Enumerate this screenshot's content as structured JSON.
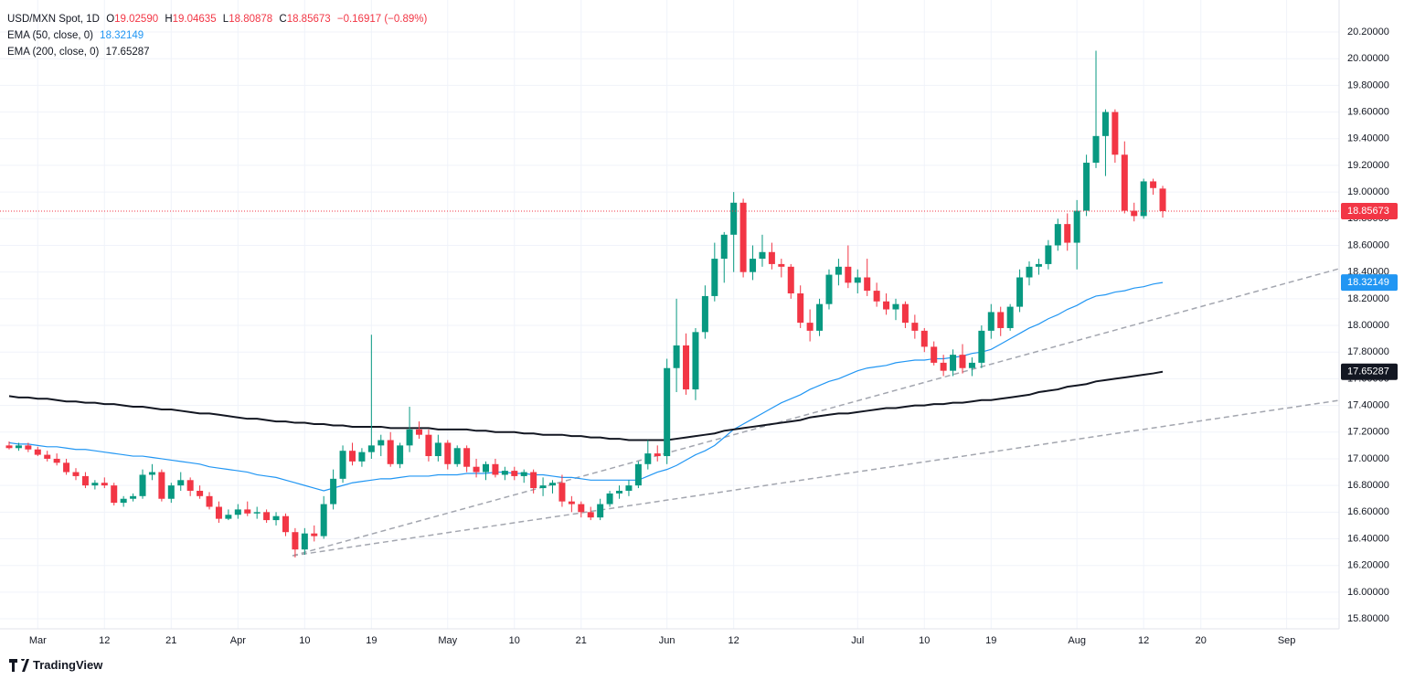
{
  "chart_data": {
    "type": "candlestick",
    "title": "USD/MXN Spot, 1D",
    "header": {
      "ohlc": [
        {
          "key": "O",
          "text": "19.02590"
        },
        {
          "key": "H",
          "text": "19.04635"
        },
        {
          "key": "L",
          "text": "18.80878"
        },
        {
          "key": "C",
          "text": "18.85673"
        }
      ],
      "change": "−0.16917 (−0.89%)"
    },
    "branding": "TradingView",
    "categories": [
      null,
      null,
      null,
      "Mar",
      null,
      null,
      null,
      null,
      null,
      null,
      "12",
      null,
      null,
      null,
      null,
      null,
      null,
      "21",
      null,
      null,
      null,
      null,
      null,
      null,
      "Apr",
      null,
      null,
      null,
      null,
      null,
      null,
      "10",
      null,
      null,
      null,
      null,
      null,
      null,
      "19",
      null,
      null,
      null,
      null,
      null,
      null,
      null,
      "May",
      null,
      null,
      null,
      null,
      null,
      null,
      "10",
      null,
      null,
      null,
      null,
      null,
      null,
      "21",
      null,
      null,
      null,
      null,
      null,
      null,
      null,
      null,
      "Jun",
      null,
      null,
      null,
      null,
      null,
      null,
      "12",
      null,
      null,
      null,
      null,
      null,
      null,
      null,
      null,
      null,
      null,
      null,
      null,
      "Jul",
      null,
      null,
      null,
      null,
      null,
      null,
      "10",
      null,
      null,
      null,
      null,
      null,
      null,
      "19",
      null,
      null,
      null,
      null,
      null,
      null,
      null,
      null,
      "Aug",
      null,
      null,
      null,
      null,
      null,
      null,
      "12",
      null,
      null,
      null,
      null,
      null,
      "20",
      null,
      null,
      null,
      null,
      null,
      null,
      null,
      null,
      "Sep",
      null,
      null,
      null,
      null,
      null
    ],
    "candles": {
      "up_color": "#089981",
      "down_color": "#f23645",
      "open": [
        17.1,
        17.08,
        17.1,
        17.07,
        17.03,
        17.0,
        16.97,
        16.9,
        16.87,
        16.8,
        16.82,
        16.8,
        16.67,
        16.7,
        16.72,
        16.88,
        16.9,
        16.7,
        16.8,
        16.84,
        16.76,
        16.72,
        16.64,
        16.55,
        16.58,
        16.62,
        16.59,
        16.6,
        16.54,
        16.57,
        16.45,
        16.32,
        16.44,
        16.42,
        16.66,
        16.85,
        17.06,
        16.98,
        17.05,
        17.1,
        17.14,
        16.96,
        17.1,
        17.22,
        17.18,
        17.02,
        17.12,
        16.96,
        17.08,
        16.94,
        16.9,
        16.96,
        16.88,
        16.91,
        16.87,
        16.9,
        16.78,
        16.8,
        16.82,
        16.68,
        16.66,
        16.6,
        16.56,
        16.66,
        16.74,
        16.76,
        16.8,
        16.96,
        17.04,
        17.02,
        17.68,
        17.85,
        17.52,
        17.95,
        18.22,
        18.5,
        18.68,
        18.92,
        18.4,
        18.5,
        18.55,
        18.46,
        18.44,
        18.24,
        18.02,
        17.96,
        18.16,
        18.38,
        18.44,
        18.32,
        18.36,
        18.26,
        18.18,
        18.12,
        18.16,
        18.02,
        17.96,
        17.84,
        17.72,
        17.66,
        17.78,
        17.68,
        17.72,
        17.96,
        18.1,
        17.98,
        18.14,
        18.36,
        18.44,
        18.46,
        18.6,
        18.76,
        18.62,
        18.86,
        19.22,
        19.42,
        19.6,
        19.28,
        18.86,
        18.82,
        19.08,
        19.0259,
        null,
        null,
        null,
        null,
        null,
        null,
        null,
        null,
        null,
        null,
        null,
        null,
        null,
        null,
        null,
        null,
        null,
        null
      ],
      "high": [
        17.13,
        17.12,
        17.12,
        17.09,
        17.06,
        17.04,
        17.0,
        16.93,
        16.9,
        16.84,
        16.86,
        16.82,
        16.72,
        16.74,
        16.92,
        16.96,
        16.92,
        16.82,
        16.9,
        16.86,
        16.8,
        16.75,
        16.68,
        16.62,
        16.66,
        16.68,
        16.64,
        16.62,
        16.6,
        16.59,
        16.48,
        16.48,
        16.5,
        16.72,
        16.92,
        17.1,
        17.12,
        17.08,
        17.93,
        17.18,
        17.2,
        17.12,
        17.39,
        17.28,
        17.22,
        17.18,
        17.14,
        17.1,
        17.1,
        17.0,
        16.98,
        17.0,
        16.94,
        16.94,
        16.92,
        16.92,
        16.86,
        16.84,
        16.88,
        16.72,
        16.68,
        16.64,
        16.7,
        16.76,
        16.8,
        16.84,
        16.98,
        17.14,
        17.1,
        17.75,
        18.2,
        17.94,
        17.98,
        18.3,
        18.62,
        18.7,
        19.0,
        18.95,
        18.6,
        18.68,
        18.62,
        18.5,
        18.46,
        18.3,
        18.12,
        18.2,
        18.42,
        18.5,
        18.6,
        18.42,
        18.5,
        18.32,
        18.24,
        18.2,
        18.18,
        18.08,
        17.98,
        17.88,
        17.78,
        17.82,
        17.86,
        17.76,
        18.0,
        18.16,
        18.14,
        18.16,
        18.42,
        18.48,
        18.5,
        18.64,
        18.8,
        18.84,
        18.94,
        19.28,
        20.06,
        19.62,
        19.62,
        19.38,
        18.92,
        19.1,
        19.1,
        19.04635,
        null,
        null,
        null,
        null,
        null,
        null,
        null,
        null,
        null,
        null,
        null,
        null,
        null,
        null,
        null,
        null,
        null,
        null
      ],
      "low": [
        17.07,
        17.06,
        17.05,
        17.02,
        16.98,
        16.95,
        16.88,
        16.84,
        16.78,
        16.77,
        16.78,
        16.65,
        16.64,
        16.68,
        16.7,
        16.84,
        16.68,
        16.67,
        16.76,
        16.72,
        16.7,
        16.62,
        16.52,
        16.54,
        16.55,
        16.57,
        16.55,
        16.52,
        16.5,
        16.42,
        16.26,
        16.28,
        16.38,
        16.4,
        16.62,
        16.82,
        16.95,
        16.94,
        17.0,
        17.02,
        16.94,
        16.93,
        17.05,
        17.15,
        16.98,
        16.98,
        16.92,
        16.94,
        16.9,
        16.86,
        16.84,
        16.86,
        16.84,
        16.84,
        16.82,
        16.74,
        16.72,
        16.74,
        16.64,
        16.6,
        16.56,
        16.54,
        16.54,
        16.64,
        16.7,
        16.72,
        16.78,
        16.92,
        16.98,
        16.96,
        17.5,
        17.48,
        17.44,
        17.9,
        18.18,
        18.32,
        18.4,
        18.36,
        18.34,
        18.44,
        18.42,
        18.36,
        18.2,
        17.98,
        17.88,
        17.92,
        18.12,
        18.3,
        18.28,
        18.24,
        18.22,
        18.14,
        18.08,
        18.04,
        17.98,
        17.9,
        17.8,
        17.7,
        17.62,
        17.62,
        17.64,
        17.62,
        17.68,
        17.9,
        17.92,
        17.96,
        18.1,
        18.3,
        18.38,
        18.42,
        18.56,
        18.56,
        18.42,
        18.82,
        19.18,
        19.12,
        19.22,
        18.84,
        18.78,
        18.8,
        18.98,
        18.80878,
        null,
        null,
        null,
        null,
        null,
        null,
        null,
        null,
        null,
        null,
        null,
        null,
        null,
        null,
        null,
        null,
        null,
        null
      ],
      "close": [
        17.08,
        17.1,
        17.07,
        17.03,
        17.0,
        16.97,
        16.9,
        16.87,
        16.8,
        16.82,
        16.8,
        16.67,
        16.7,
        16.72,
        16.88,
        16.9,
        16.7,
        16.8,
        16.84,
        16.76,
        16.72,
        16.64,
        16.55,
        16.58,
        16.62,
        16.59,
        16.6,
        16.54,
        16.57,
        16.45,
        16.32,
        16.44,
        16.42,
        16.66,
        16.85,
        17.06,
        16.98,
        17.05,
        17.1,
        17.14,
        16.96,
        17.1,
        17.22,
        17.18,
        17.02,
        17.12,
        16.96,
        17.08,
        16.94,
        16.9,
        16.96,
        16.88,
        16.91,
        16.87,
        16.9,
        16.78,
        16.8,
        16.82,
        16.68,
        16.66,
        16.6,
        16.56,
        16.66,
        16.74,
        16.76,
        16.8,
        16.96,
        17.04,
        17.02,
        17.68,
        17.85,
        17.52,
        17.95,
        18.22,
        18.5,
        18.68,
        18.92,
        18.4,
        18.5,
        18.55,
        18.46,
        18.44,
        18.24,
        18.02,
        17.96,
        18.16,
        18.38,
        18.44,
        18.32,
        18.36,
        18.26,
        18.18,
        18.12,
        18.16,
        18.02,
        17.96,
        17.84,
        17.72,
        17.66,
        17.78,
        17.68,
        17.72,
        17.96,
        18.1,
        17.98,
        18.14,
        18.36,
        18.44,
        18.46,
        18.6,
        18.76,
        18.62,
        18.86,
        19.22,
        19.42,
        19.6,
        19.28,
        18.86,
        18.82,
        19.08,
        19.03,
        18.85673,
        null,
        null,
        null,
        null,
        null,
        null,
        null,
        null,
        null,
        null,
        null,
        null,
        null,
        null,
        null,
        null,
        null,
        null
      ]
    },
    "series": [
      {
        "name": "EMA (50, close, 0)",
        "color": "#2196f3",
        "values": [
          17.12,
          17.11,
          17.11,
          17.1,
          17.09,
          17.09,
          17.08,
          17.07,
          17.07,
          17.06,
          17.05,
          17.04,
          17.03,
          17.02,
          17.02,
          17.01,
          17.0,
          16.99,
          16.98,
          16.97,
          16.96,
          16.94,
          16.93,
          16.92,
          16.91,
          16.9,
          16.88,
          16.87,
          16.86,
          16.84,
          16.82,
          16.8,
          16.78,
          16.76,
          16.78,
          16.8,
          16.82,
          16.83,
          16.84,
          16.85,
          16.85,
          16.86,
          16.87,
          16.87,
          16.87,
          16.88,
          16.88,
          16.88,
          16.89,
          16.89,
          16.89,
          16.9,
          16.9,
          16.89,
          16.89,
          16.88,
          16.88,
          16.87,
          16.86,
          16.86,
          16.85,
          16.84,
          16.84,
          16.84,
          16.84,
          16.84,
          16.84,
          16.87,
          16.9,
          16.92,
          16.95,
          16.99,
          17.03,
          17.06,
          17.1,
          17.16,
          17.22,
          17.26,
          17.3,
          17.34,
          17.38,
          17.42,
          17.45,
          17.48,
          17.52,
          17.55,
          17.58,
          17.6,
          17.63,
          17.66,
          17.68,
          17.69,
          17.7,
          17.72,
          17.73,
          17.74,
          17.74,
          17.75,
          17.75,
          17.76,
          17.77,
          17.79,
          17.8,
          17.82,
          17.86,
          17.9,
          17.94,
          17.98,
          18.01,
          18.05,
          18.08,
          18.12,
          18.15,
          18.19,
          18.22,
          18.23,
          18.25,
          18.26,
          18.28,
          18.29,
          18.31,
          18.32149,
          null,
          null,
          null,
          null,
          null,
          null,
          null,
          null,
          null,
          null,
          null,
          null,
          null,
          null,
          null,
          null,
          null,
          null
        ]
      },
      {
        "name": "EMA (200, close, 0)",
        "color": "#131722",
        "values": [
          17.47,
          17.46,
          17.46,
          17.45,
          17.45,
          17.44,
          17.43,
          17.43,
          17.42,
          17.42,
          17.41,
          17.41,
          17.4,
          17.39,
          17.39,
          17.38,
          17.37,
          17.37,
          17.36,
          17.35,
          17.34,
          17.34,
          17.33,
          17.32,
          17.31,
          17.3,
          17.3,
          17.29,
          17.28,
          17.28,
          17.27,
          17.27,
          17.26,
          17.26,
          17.25,
          17.25,
          17.24,
          17.24,
          17.24,
          17.24,
          17.23,
          17.23,
          17.23,
          17.23,
          17.23,
          17.22,
          17.22,
          17.22,
          17.22,
          17.21,
          17.21,
          17.2,
          17.2,
          17.2,
          17.19,
          17.19,
          17.18,
          17.18,
          17.18,
          17.17,
          17.17,
          17.16,
          17.16,
          17.15,
          17.15,
          17.14,
          17.14,
          17.14,
          17.14,
          17.14,
          17.15,
          17.16,
          17.17,
          17.18,
          17.19,
          17.21,
          17.22,
          17.23,
          17.24,
          17.25,
          17.26,
          17.27,
          17.28,
          17.29,
          17.31,
          17.32,
          17.33,
          17.34,
          17.34,
          17.35,
          17.36,
          17.37,
          17.38,
          17.38,
          17.39,
          17.4,
          17.4,
          17.41,
          17.41,
          17.42,
          17.42,
          17.43,
          17.44,
          17.44,
          17.45,
          17.46,
          17.47,
          17.48,
          17.5,
          17.51,
          17.52,
          17.54,
          17.55,
          17.56,
          17.58,
          17.59,
          17.6,
          17.61,
          17.62,
          17.63,
          17.64,
          17.65287,
          null,
          null,
          null,
          null,
          null,
          null,
          null,
          null,
          null,
          null,
          null,
          null,
          null,
          null,
          null,
          null,
          null,
          null
        ]
      }
    ],
    "ylim": [
      15.725,
      20.44
    ],
    "yticks": [
      {
        "value": 15.8,
        "label": "15.80000"
      },
      {
        "value": 16.0,
        "label": "16.00000"
      },
      {
        "value": 16.2,
        "label": "16.20000"
      },
      {
        "value": 16.4,
        "label": "16.40000"
      },
      {
        "value": 16.6,
        "label": "16.60000"
      },
      {
        "value": 16.8,
        "label": "16.80000"
      },
      {
        "value": 17.0,
        "label": "17.00000"
      },
      {
        "value": 17.2,
        "label": "17.20000"
      },
      {
        "value": 17.4,
        "label": "17.40000"
      },
      {
        "value": 17.6,
        "label": "17.60000"
      },
      {
        "value": 17.8,
        "label": "17.80000"
      },
      {
        "value": 18.0,
        "label": "18.00000"
      },
      {
        "value": 18.2,
        "label": "18.20000"
      },
      {
        "value": 18.4,
        "label": "18.40000"
      },
      {
        "value": 18.6,
        "label": "18.60000"
      },
      {
        "value": 18.8,
        "label": "18.80000"
      },
      {
        "value": 19.0,
        "label": "19.00000"
      },
      {
        "value": 19.2,
        "label": "19.20000"
      },
      {
        "value": 19.4,
        "label": "19.40000"
      },
      {
        "value": 19.6,
        "label": "19.60000"
      },
      {
        "value": 19.8,
        "label": "19.80000"
      },
      {
        "value": 20.0,
        "label": "20.00000"
      },
      {
        "value": 20.2,
        "label": "20.20000"
      }
    ],
    "grid": true
  }
}
